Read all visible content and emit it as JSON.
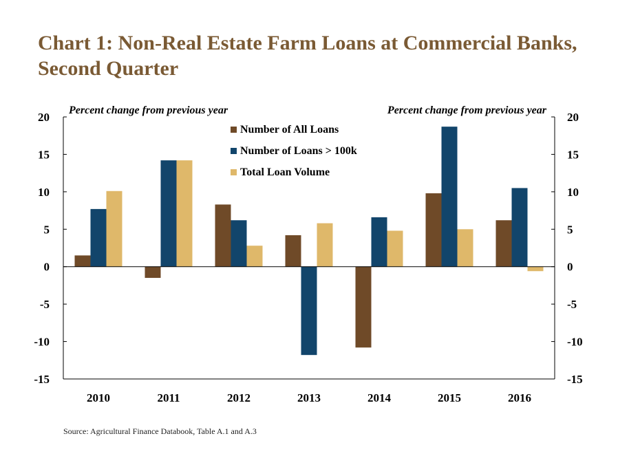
{
  "title": "Chart 1: Non-Real Estate Farm Loans at Commercial Banks, Second Quarter",
  "source": "Source: Agricultural Finance Databook, Table A.1 and A.3",
  "colors": {
    "title": "#7a5a34",
    "series": [
      "#6f4a28",
      "#12456b",
      "#dfb86a"
    ]
  },
  "chart_data": {
    "type": "bar",
    "categories": [
      "2010",
      "2011",
      "2012",
      "2013",
      "2014",
      "2015",
      "2016"
    ],
    "series": [
      {
        "name": "Number of All Loans",
        "values": [
          1.5,
          -1.5,
          8.3,
          4.2,
          -10.8,
          9.8,
          6.2
        ]
      },
      {
        "name": "Number of Loans > 100k",
        "values": [
          7.7,
          14.2,
          6.2,
          -11.8,
          6.6,
          18.7,
          10.5
        ]
      },
      {
        "name": "Total Loan Volume",
        "values": [
          10.1,
          14.2,
          2.8,
          5.8,
          4.8,
          5.0,
          -0.6
        ]
      }
    ],
    "ylabel_left": "Percent change from previous year",
    "ylabel_right": "Percent change from previous year",
    "ylim": [
      -15,
      20
    ],
    "yticks": [
      "20",
      "15",
      "10",
      "5",
      "0",
      "-5",
      "-10",
      "-15"
    ],
    "grid": false,
    "legend_position": "top-center"
  }
}
